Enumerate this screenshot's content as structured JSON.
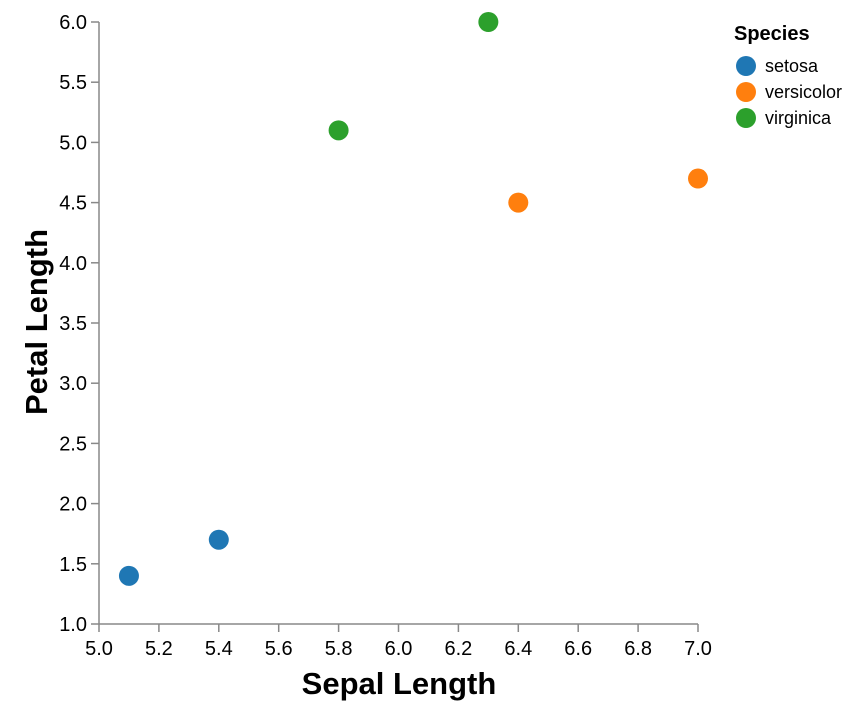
{
  "chart_data": {
    "type": "scatter",
    "title": "",
    "xlabel": "Sepal Length",
    "ylabel": "Petal Length",
    "xlim": [
      5.0,
      7.0
    ],
    "ylim": [
      1.0,
      6.0
    ],
    "x_ticks": [
      "5.0",
      "5.2",
      "5.4",
      "5.6",
      "5.8",
      "6.0",
      "6.2",
      "6.4",
      "6.6",
      "6.8",
      "7.0"
    ],
    "y_ticks": [
      "1.0",
      "1.5",
      "2.0",
      "2.5",
      "3.0",
      "3.5",
      "4.0",
      "4.5",
      "5.0",
      "5.5",
      "6.0"
    ],
    "grid": false,
    "legend": {
      "title": "Species",
      "placement": "top-right"
    },
    "series": [
      {
        "name": "setosa",
        "color": "#1f77b4",
        "points": [
          {
            "x": 5.1,
            "y": 1.4
          },
          {
            "x": 5.4,
            "y": 1.7
          }
        ]
      },
      {
        "name": "versicolor",
        "color": "#ff7f0e",
        "points": [
          {
            "x": 6.4,
            "y": 4.5
          },
          {
            "x": 7.0,
            "y": 4.7
          }
        ]
      },
      {
        "name": "virginica",
        "color": "#2ca02c",
        "points": [
          {
            "x": 5.8,
            "y": 5.1
          },
          {
            "x": 6.3,
            "y": 6.0
          }
        ]
      }
    ]
  }
}
